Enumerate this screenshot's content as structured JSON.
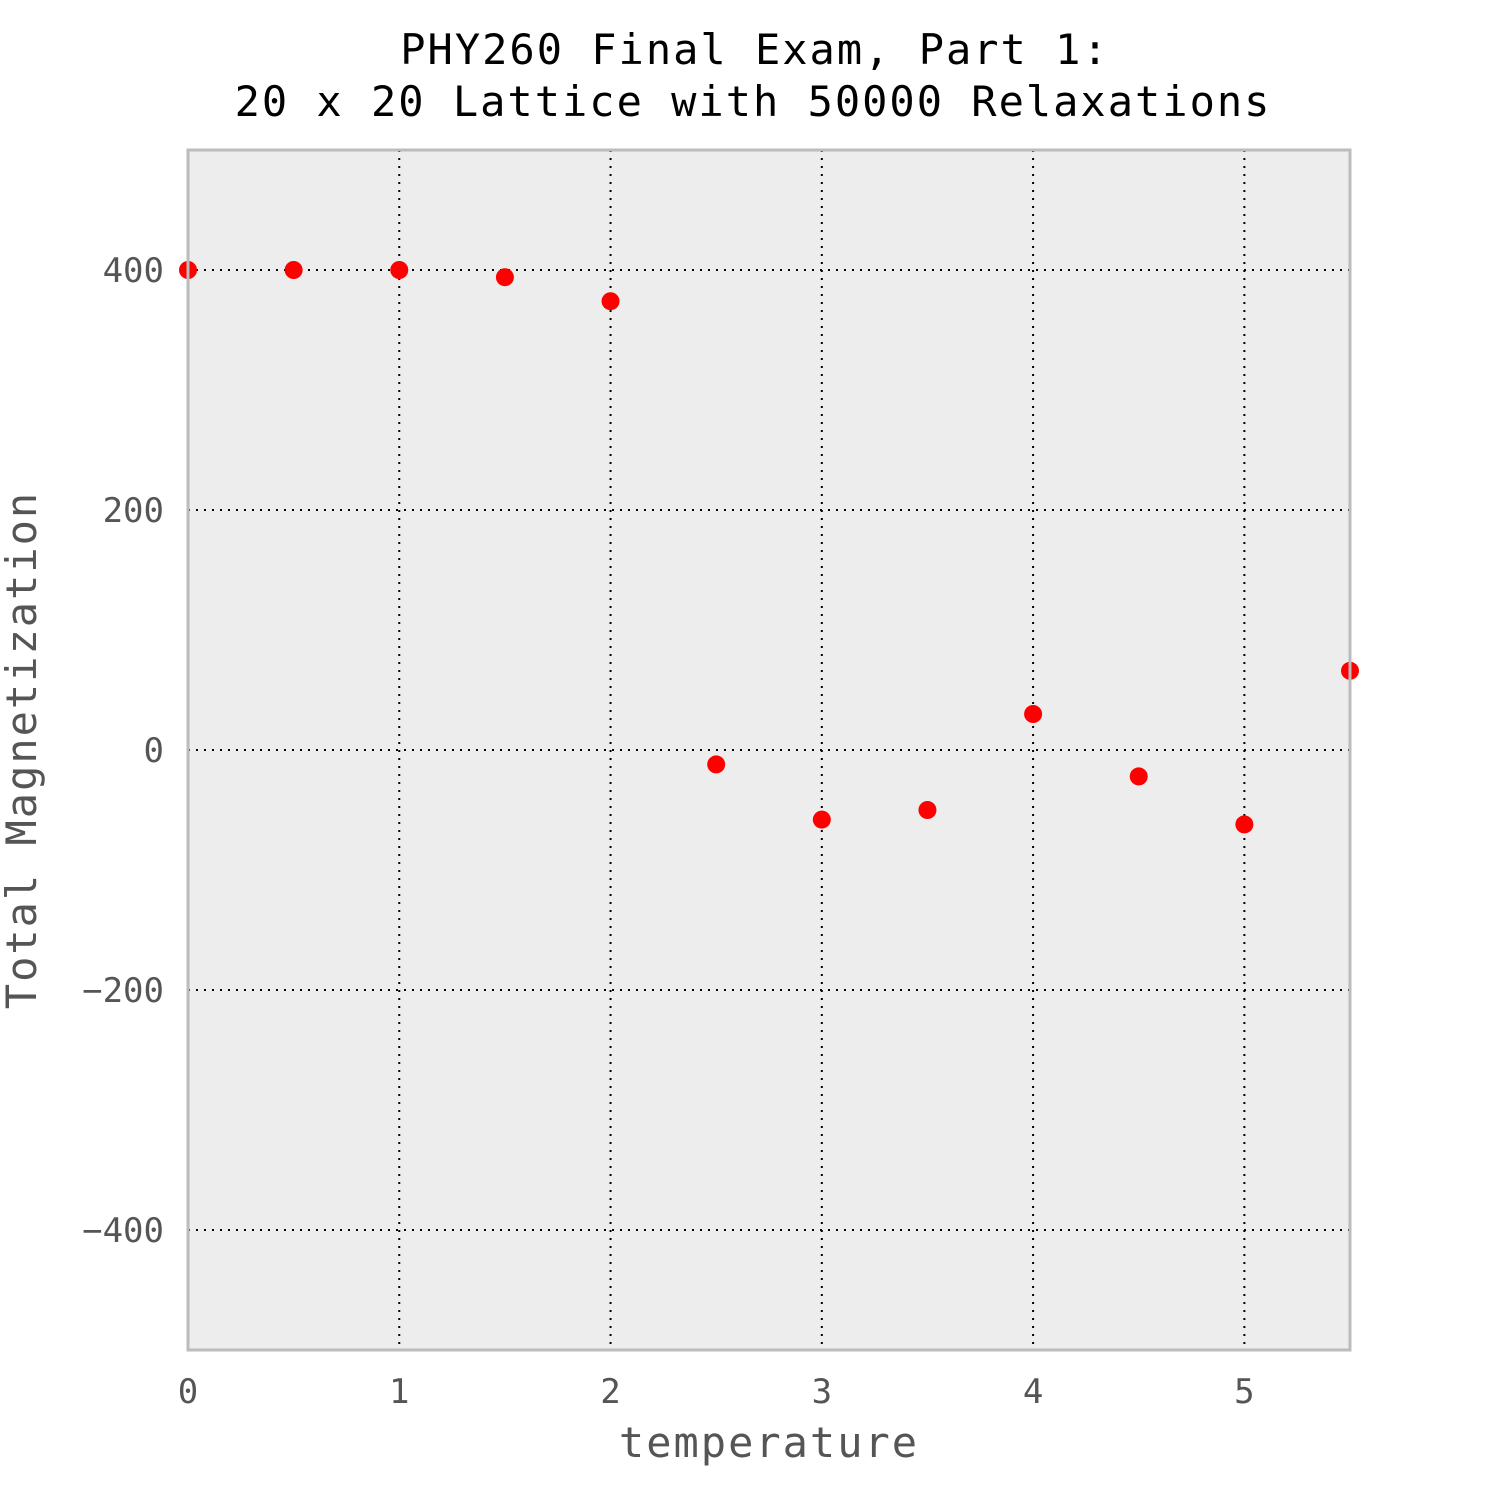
{
  "chart_data": {
    "type": "scatter",
    "title": [
      "PHY260 Final Exam, Part 1:",
      "20 x 20 Lattice with 50000 Relaxations"
    ],
    "xlabel": "temperature",
    "ylabel": "Total Magnetization",
    "xlim": [
      0,
      5.5
    ],
    "ylim": [
      -500,
      500
    ],
    "xticks": [
      0,
      1,
      2,
      3,
      4,
      5
    ],
    "yticks": [
      -400,
      -200,
      0,
      200,
      400
    ],
    "xtick_labels": [
      "0",
      "1",
      "2",
      "3",
      "4",
      "5"
    ],
    "ytick_labels": [
      "−400",
      "−200",
      "0",
      "200",
      "400"
    ],
    "grid": true,
    "series": [
      {
        "color": "#ff0000",
        "x": [
          0,
          0.5,
          1.0,
          1.5,
          2.0,
          2.5,
          3.0,
          3.5,
          4.0,
          4.5,
          5.0,
          5.5
        ],
        "y": [
          400,
          400,
          400,
          394,
          374,
          -12,
          -58,
          -50,
          30,
          -22,
          -62,
          66
        ]
      }
    ],
    "colors": {
      "plot_background": "#ededed",
      "frame": "#bcbcbc",
      "marker": "#ff0000"
    }
  }
}
